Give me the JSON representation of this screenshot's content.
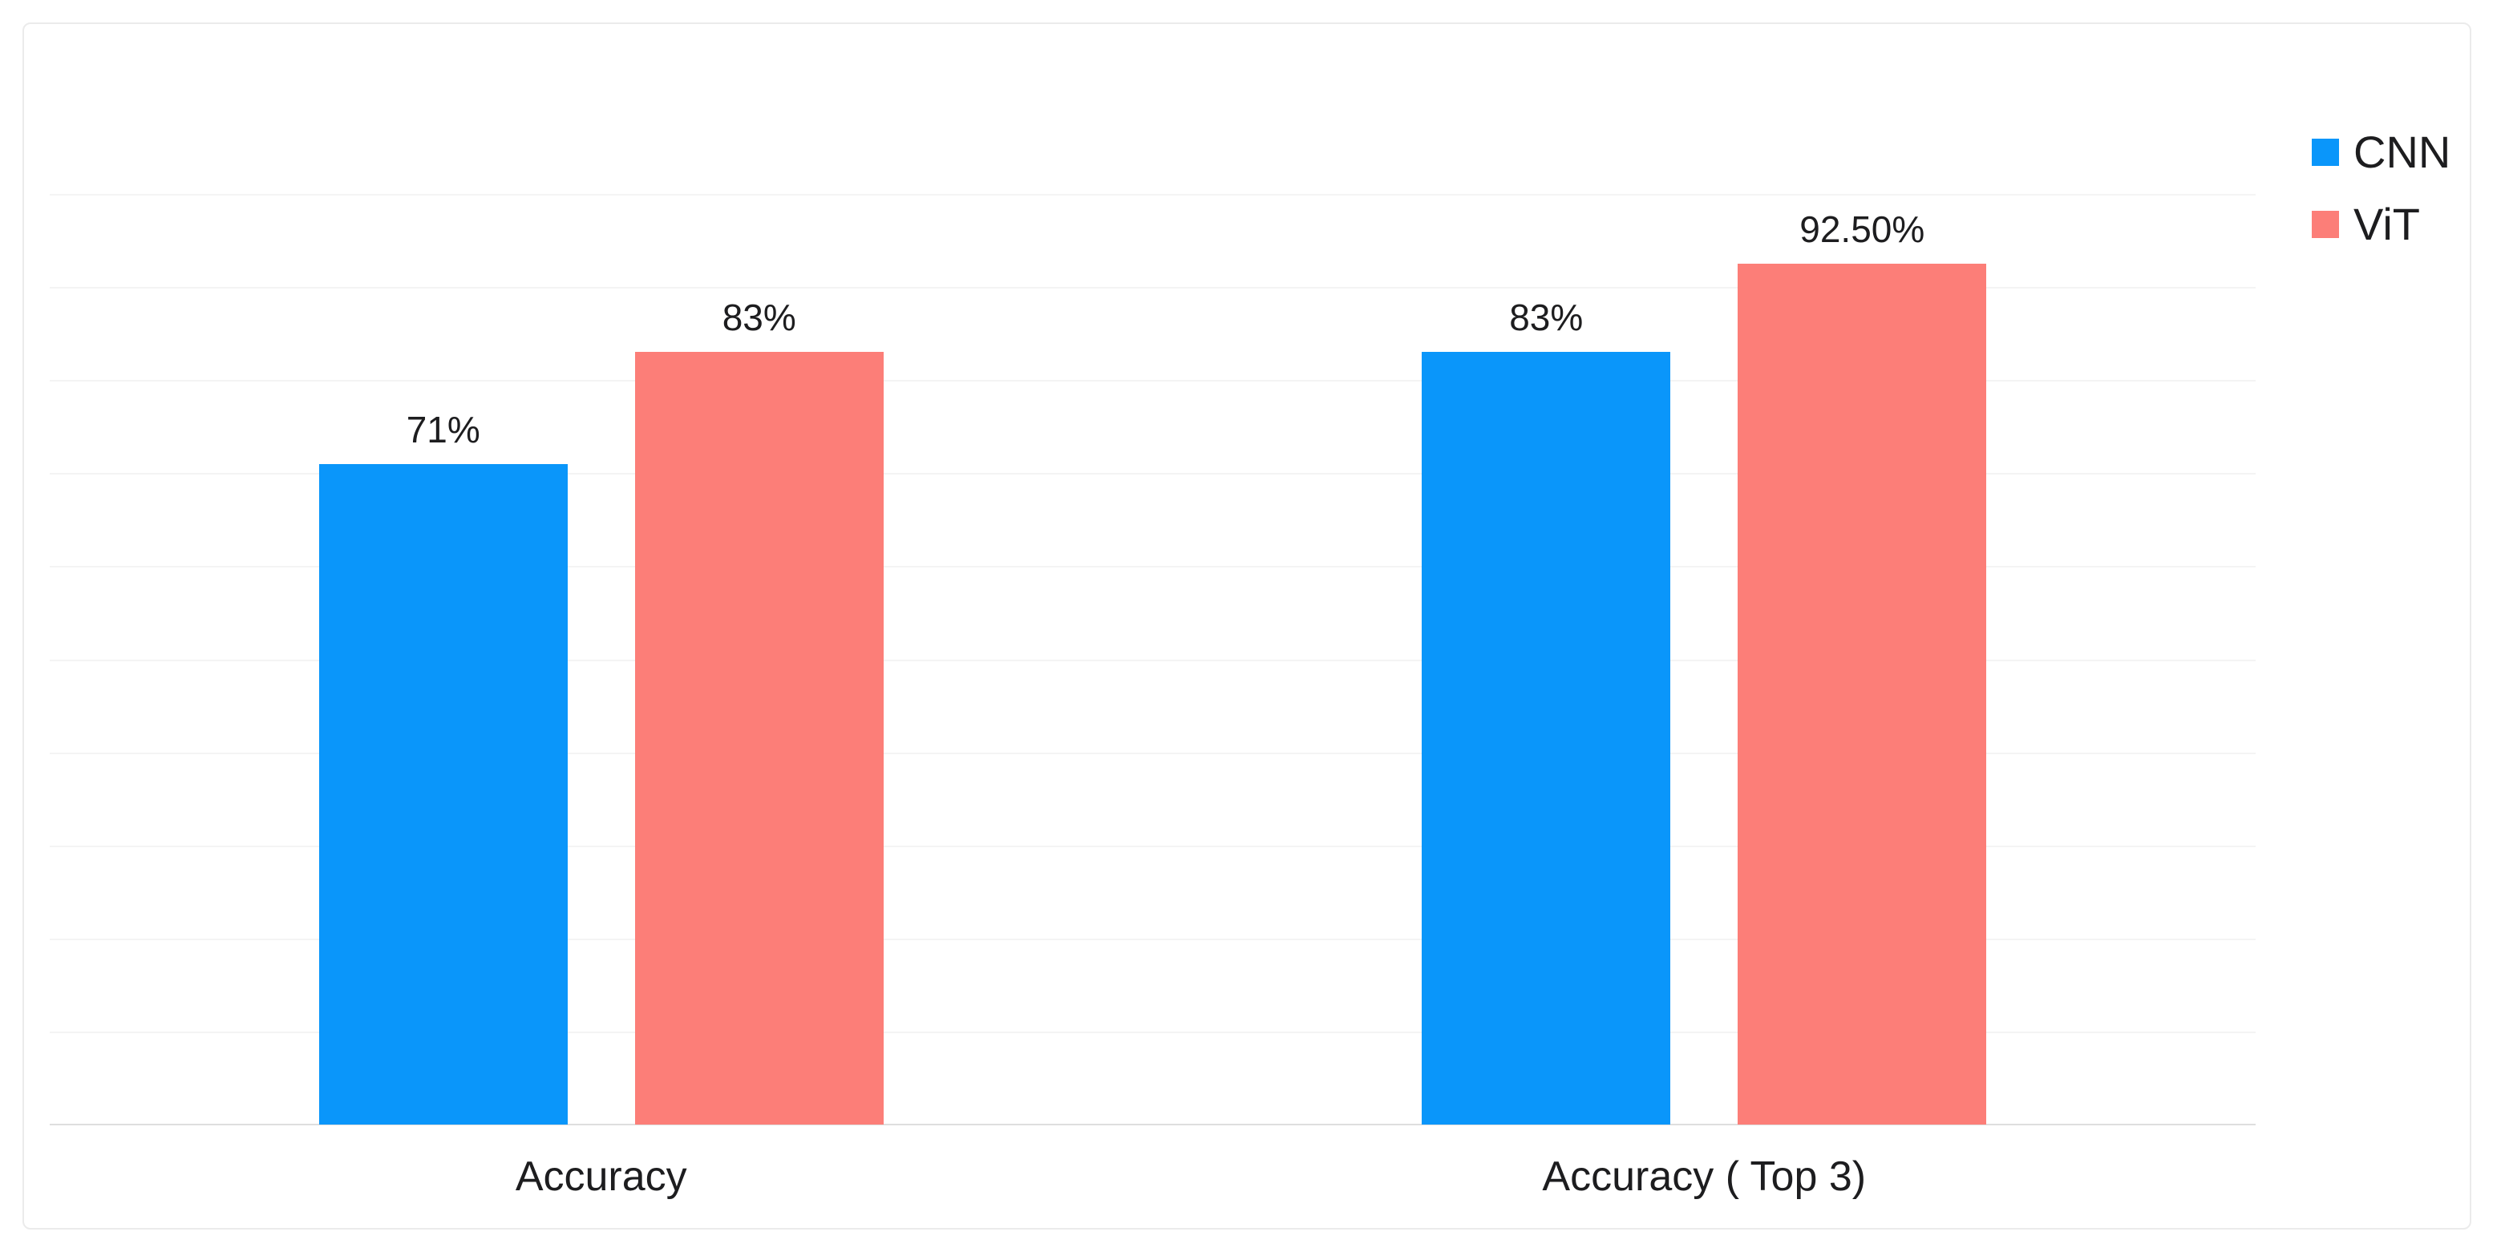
{
  "chart_data": {
    "type": "bar",
    "title": "",
    "xlabel": "",
    "ylabel": "",
    "categories": [
      "Accuracy",
      "Accuracy ( Top 3)"
    ],
    "series": [
      {
        "name": "CNN",
        "color": "#0a96fa",
        "values": [
          71,
          83
        ],
        "value_labels": [
          "71%",
          "83%"
        ]
      },
      {
        "name": "ViT",
        "color": "#fc7e78",
        "values": [
          83,
          92.5
        ],
        "value_labels": [
          "83%",
          "92.50%"
        ]
      }
    ],
    "ylim": [
      0,
      100
    ],
    "gridline_step": 10,
    "grid": "horizontal",
    "y_tick_labels_visible": false,
    "legend_position": "top-right",
    "legend": [
      "CNN",
      "ViT"
    ]
  },
  "colors": {
    "grid": "#f4f4f4",
    "axis": "#dedede",
    "card_border": "#ebebeb",
    "text": "#1d1d1f",
    "background": "#ffffff"
  }
}
